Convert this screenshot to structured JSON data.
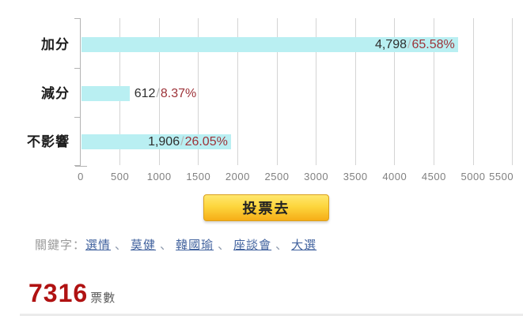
{
  "chart_data": {
    "type": "bar",
    "orientation": "horizontal",
    "title": "",
    "categories": [
      "加分",
      "減分",
      "不影響"
    ],
    "values": [
      4798,
      612,
      1906
    ],
    "value_labels": [
      "4,798",
      "612",
      "1,906"
    ],
    "percentages": [
      65.58,
      8.37,
      26.05
    ],
    "percent_labels": [
      "65.58%",
      "8.37%",
      "26.05%"
    ],
    "value_separator": "/",
    "xlim": [
      0,
      5500
    ],
    "x_ticks": [
      0,
      500,
      1000,
      1500,
      2000,
      2500,
      3000,
      3500,
      4000,
      4500,
      5000,
      5500
    ],
    "grid": true,
    "legend": false,
    "bar_color": "#b9eff2"
  },
  "vote_button": {
    "label": "投票去"
  },
  "keywords": {
    "label": "關鍵字：",
    "separator": "、",
    "links": [
      "選情",
      "莫健",
      "韓國瑜",
      "座談會",
      "大選"
    ]
  },
  "total": {
    "count": "7316",
    "label": "票數"
  },
  "colors": {
    "bar": "#b9eff2",
    "value_text": "#2e2e2e",
    "percent_text": "#9d3238",
    "grid": "#d4d4d4",
    "axis": "#b3b3b3",
    "tick_label": "#808080",
    "link": "#41629e",
    "keyword_label": "#9a9a9a",
    "total_count": "#b01212",
    "button_border": "#daa01e"
  }
}
